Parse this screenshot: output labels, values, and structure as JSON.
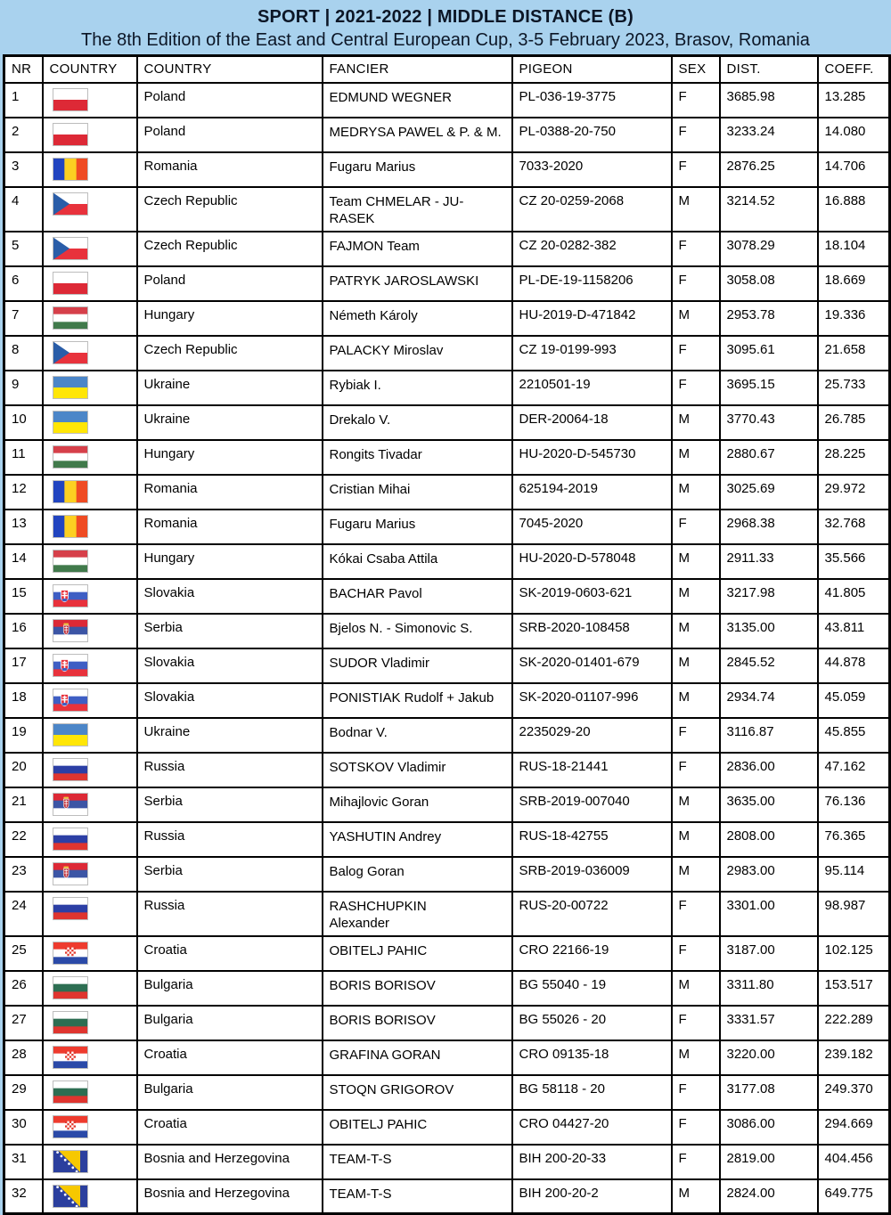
{
  "page": {
    "title": "SPORT | 2021-2022 | MIDDLE DISTANCE (B)",
    "subtitle": "The 8th Edition of the East and Central European Cup, 3-5 February 2023, Brasov, Romania"
  },
  "colors": {
    "banner_bg": "#a9d2ee",
    "banner_text": "#0c1626",
    "table_bg": "#ffffff",
    "border": "#000000"
  },
  "table": {
    "columns": [
      "NR",
      "COUNTRY",
      "COUNTRY",
      "FANCIER",
      "PIGEON",
      "SEX",
      "DIST.",
      "COEFF."
    ],
    "rows": [
      {
        "nr": "1",
        "country_code": "pl",
        "country": "Poland",
        "fancier": "EDMUND WEGNER",
        "pigeon": "PL-036-19-3775",
        "sex": "F",
        "dist": "3685.98",
        "coeff": "13.285"
      },
      {
        "nr": "2",
        "country_code": "pl",
        "country": "Poland",
        "fancier": "MEDRYSA PAWEL & P. & M.",
        "pigeon": "PL-0388-20-750",
        "sex": "F",
        "dist": "3233.24",
        "coeff": "14.080"
      },
      {
        "nr": "3",
        "country_code": "ro",
        "country": "Romania",
        "fancier": "Fugaru Marius",
        "pigeon": "7033-2020",
        "sex": "F",
        "dist": "2876.25",
        "coeff": "14.706"
      },
      {
        "nr": "4",
        "country_code": "cz",
        "country": "Czech Republic",
        "fancier": "Team CHMELAR - JU-\nRASEK",
        "pigeon": "CZ 20-0259-2068",
        "sex": "M",
        "dist": "3214.52",
        "coeff": "16.888"
      },
      {
        "nr": "5",
        "country_code": "cz",
        "country": "Czech Republic",
        "fancier": "FAJMON Team",
        "pigeon": "CZ 20-0282-382",
        "sex": "F",
        "dist": "3078.29",
        "coeff": "18.104"
      },
      {
        "nr": "6",
        "country_code": "pl",
        "country": "Poland",
        "fancier": "PATRYK JAROSLAWSKI",
        "pigeon": "PL-DE-19-1158206",
        "sex": "F",
        "dist": "3058.08",
        "coeff": "18.669"
      },
      {
        "nr": "7",
        "country_code": "hu",
        "country": "Hungary",
        "fancier": "Németh Károly",
        "pigeon": "HU-2019-D-471842",
        "sex": "M",
        "dist": "2953.78",
        "coeff": "19.336"
      },
      {
        "nr": "8",
        "country_code": "cz",
        "country": "Czech Republic",
        "fancier": "PALACKY Miroslav",
        "pigeon": "CZ 19-0199-993",
        "sex": "F",
        "dist": "3095.61",
        "coeff": "21.658"
      },
      {
        "nr": "9",
        "country_code": "ua",
        "country": "Ukraine",
        "fancier": "Rybiak I.",
        "pigeon": "2210501-19",
        "sex": "F",
        "dist": "3695.15",
        "coeff": "25.733"
      },
      {
        "nr": "10",
        "country_code": "ua",
        "country": "Ukraine",
        "fancier": "Drekalo V.",
        "pigeon": "DER-20064-18",
        "sex": "M",
        "dist": "3770.43",
        "coeff": "26.785"
      },
      {
        "nr": "11",
        "country_code": "hu",
        "country": "Hungary",
        "fancier": "Rongits Tivadar",
        "pigeon": "HU-2020-D-545730",
        "sex": "M",
        "dist": "2880.67",
        "coeff": "28.225"
      },
      {
        "nr": "12",
        "country_code": "ro",
        "country": "Romania",
        "fancier": "Cristian Mihai",
        "pigeon": "625194-2019",
        "sex": "M",
        "dist": "3025.69",
        "coeff": "29.972"
      },
      {
        "nr": "13",
        "country_code": "ro",
        "country": "Romania",
        "fancier": "Fugaru Marius",
        "pigeon": "7045-2020",
        "sex": "F",
        "dist": "2968.38",
        "coeff": "32.768"
      },
      {
        "nr": "14",
        "country_code": "hu",
        "country": "Hungary",
        "fancier": "Kókai Csaba Attila",
        "pigeon": "HU-2020-D-578048",
        "sex": "M",
        "dist": "2911.33",
        "coeff": "35.566"
      },
      {
        "nr": "15",
        "country_code": "sk",
        "country": "Slovakia",
        "fancier": "BACHAR Pavol",
        "pigeon": "SK-2019-0603-621",
        "sex": "M",
        "dist": "3217.98",
        "coeff": "41.805"
      },
      {
        "nr": "16",
        "country_code": "rs",
        "country": "Serbia",
        "fancier": "Bjelos N. - Simonovic S.",
        "pigeon": "SRB-2020-108458",
        "sex": "M",
        "dist": "3135.00",
        "coeff": "43.811"
      },
      {
        "nr": "17",
        "country_code": "sk",
        "country": "Slovakia",
        "fancier": "SUDOR Vladimir",
        "pigeon": "SK-2020-01401-679",
        "sex": "M",
        "dist": "2845.52",
        "coeff": "44.878"
      },
      {
        "nr": "18",
        "country_code": "sk",
        "country": "Slovakia",
        "fancier": "PONISTIAK Rudolf + Jakub",
        "pigeon": "SK-2020-01107-996",
        "sex": "M",
        "dist": "2934.74",
        "coeff": "45.059"
      },
      {
        "nr": "19",
        "country_code": "ua",
        "country": "Ukraine",
        "fancier": "Bodnar V.",
        "pigeon": "2235029-20",
        "sex": "F",
        "dist": "3116.87",
        "coeff": "45.855"
      },
      {
        "nr": "20",
        "country_code": "ru",
        "country": "Russia",
        "fancier": "SOTSKOV Vladimir",
        "pigeon": "RUS-18-21441",
        "sex": "F",
        "dist": "2836.00",
        "coeff": "47.162"
      },
      {
        "nr": "21",
        "country_code": "rs",
        "country": "Serbia",
        "fancier": "Mihajlovic Goran",
        "pigeon": "SRB-2019-007040",
        "sex": "M",
        "dist": "3635.00",
        "coeff": "76.136"
      },
      {
        "nr": "22",
        "country_code": "ru",
        "country": "Russia",
        "fancier": "YASHUTIN Andrey",
        "pigeon": "RUS-18-42755",
        "sex": "M",
        "dist": "2808.00",
        "coeff": "76.365"
      },
      {
        "nr": "23",
        "country_code": "rs",
        "country": "Serbia",
        "fancier": "Balog Goran",
        "pigeon": "SRB-2019-036009",
        "sex": "M",
        "dist": "2983.00",
        "coeff": "95.114"
      },
      {
        "nr": "24",
        "country_code": "ru",
        "country": "Russia",
        "fancier": "RASHCHUPKIN\nAlexander",
        "pigeon": "RUS-20-00722",
        "sex": "F",
        "dist": "3301.00",
        "coeff": "98.987"
      },
      {
        "nr": "25",
        "country_code": "hr",
        "country": "Croatia",
        "fancier": "OBITELJ PAHIC",
        "pigeon": "CRO 22166-19",
        "sex": "F",
        "dist": "3187.00",
        "coeff": "102.125"
      },
      {
        "nr": "26",
        "country_code": "bg",
        "country": "Bulgaria",
        "fancier": "BORIS BORISOV",
        "pigeon": "BG 55040 - 19",
        "sex": "M",
        "dist": "3311.80",
        "coeff": "153.517"
      },
      {
        "nr": "27",
        "country_code": "bg",
        "country": "Bulgaria",
        "fancier": "BORIS BORISOV",
        "pigeon": "BG 55026 - 20",
        "sex": "F",
        "dist": "3331.57",
        "coeff": "222.289"
      },
      {
        "nr": "28",
        "country_code": "hr",
        "country": "Croatia",
        "fancier": "GRAFINA GORAN",
        "pigeon": "CRO 09135-18",
        "sex": "M",
        "dist": "3220.00",
        "coeff": "239.182"
      },
      {
        "nr": "29",
        "country_code": "bg",
        "country": "Bulgaria",
        "fancier": "STOQN GRIGOROV",
        "pigeon": "BG 58118 - 20",
        "sex": "F",
        "dist": "3177.08",
        "coeff": "249.370"
      },
      {
        "nr": "30",
        "country_code": "hr",
        "country": "Croatia",
        "fancier": "OBITELJ PAHIC",
        "pigeon": "CRO 04427-20",
        "sex": "F",
        "dist": "3086.00",
        "coeff": "294.669"
      },
      {
        "nr": "31",
        "country_code": "ba",
        "country": "Bosnia and Herzegovina",
        "fancier": "TEAM-T-S",
        "pigeon": "BIH 200-20-33",
        "sex": "F",
        "dist": "2819.00",
        "coeff": "404.456"
      },
      {
        "nr": "32",
        "country_code": "ba",
        "country": "Bosnia and Herzegovina",
        "fancier": "TEAM-T-S",
        "pigeon": "BIH 200-20-2",
        "sex": "M",
        "dist": "2824.00",
        "coeff": "649.775"
      }
    ]
  }
}
